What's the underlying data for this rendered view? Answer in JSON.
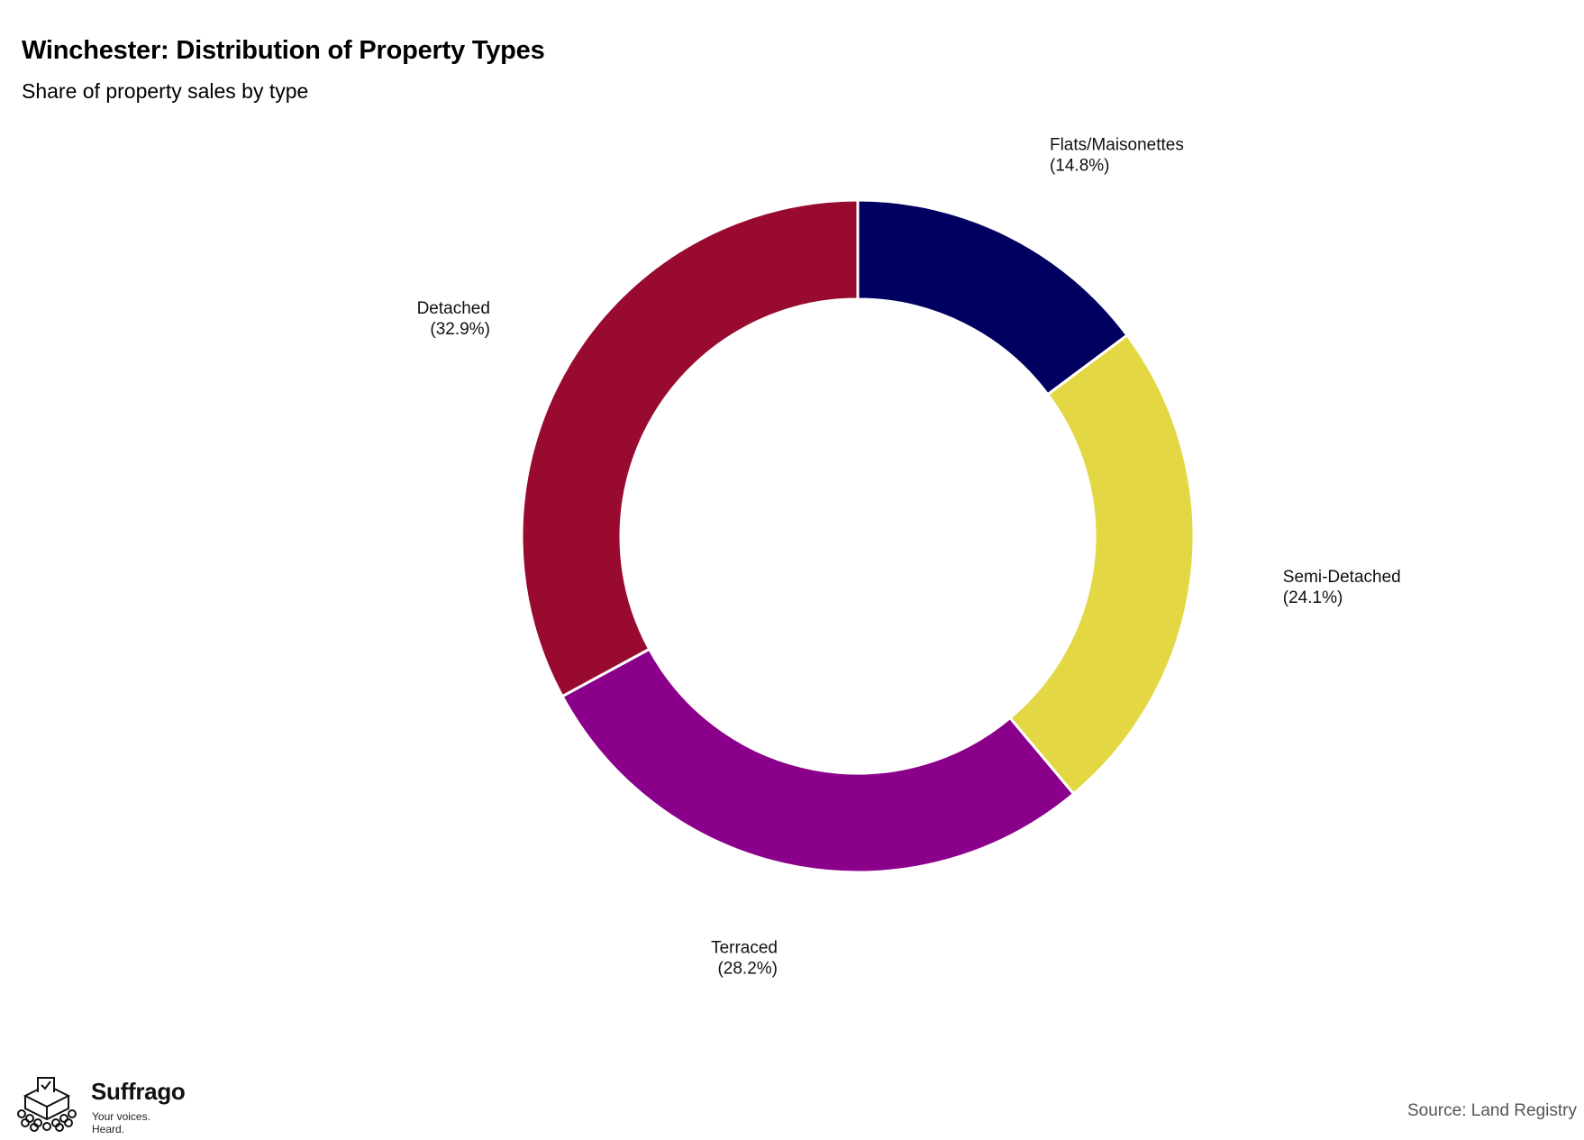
{
  "header": {
    "title": "Winchester: Distribution of Property Types",
    "subtitle": "Share of property sales by type"
  },
  "footer": {
    "brand_name": "Suffrago",
    "brand_tagline": "Your voices. Heard.",
    "source": "Source: Land Registry"
  },
  "chart_data": {
    "type": "pie",
    "style": "donut",
    "title": "Winchester: Distribution of Property Types",
    "subtitle": "Share of property sales by type",
    "slices": [
      {
        "label": "Flats/Maisonettes",
        "value": 14.8,
        "value_label": "(14.8%)",
        "color": "#000060"
      },
      {
        "label": "Semi-Detached",
        "value": 24.1,
        "value_label": "(24.1%)",
        "color": "#E3D843"
      },
      {
        "label": "Terraced",
        "value": 28.2,
        "value_label": "(28.2%)",
        "color": "#8B008B"
      },
      {
        "label": "Detached",
        "value": 32.9,
        "value_label": "(32.9%)",
        "color": "#990A31"
      }
    ],
    "legend": "none",
    "slice_order": "clockwise from top"
  }
}
